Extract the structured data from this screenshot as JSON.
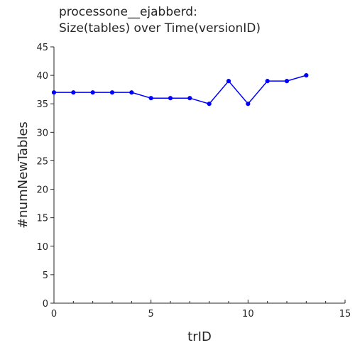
{
  "chart_data": {
    "type": "line",
    "title_lines": [
      "processone__ejabberd:",
      "Size(tables) over Time(versionID)"
    ],
    "xlabel": "trID",
    "ylabel": "#numNewTables",
    "xlim": [
      0,
      15
    ],
    "ylim": [
      0,
      45
    ],
    "x_ticks": [
      0,
      5,
      10,
      15
    ],
    "x_ticks_minor": [
      1,
      2,
      3,
      4,
      6,
      7,
      8,
      9,
      11,
      12,
      13,
      14
    ],
    "y_ticks": [
      0,
      5,
      10,
      15,
      20,
      25,
      30,
      35,
      40,
      45
    ],
    "grid": false,
    "line_color": "#0000ff",
    "series": [
      {
        "x": [
          0,
          1,
          2,
          3,
          4,
          5,
          6,
          7,
          8,
          9,
          10,
          11,
          12,
          13
        ],
        "values": [
          37,
          37,
          37,
          37,
          37,
          36,
          36,
          36,
          35,
          39,
          35,
          39,
          39,
          40
        ]
      }
    ]
  }
}
